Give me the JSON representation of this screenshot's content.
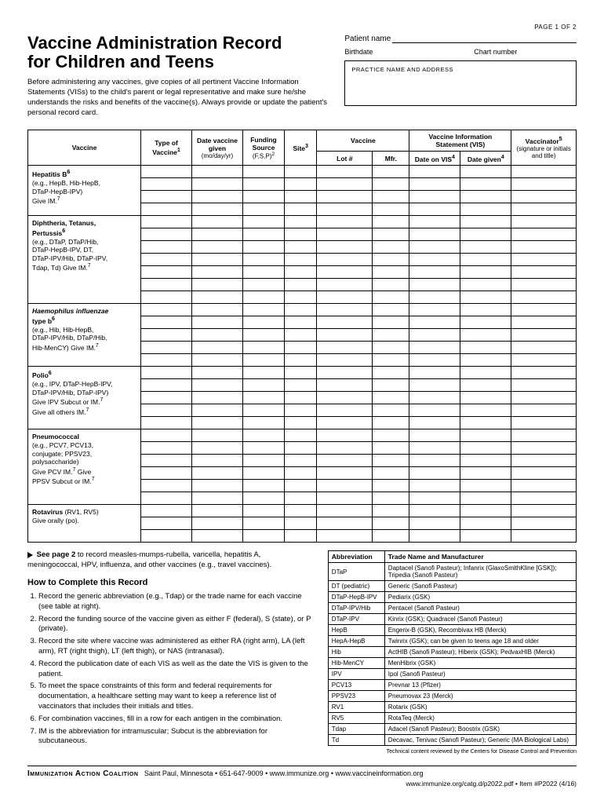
{
  "page_num": "PAGE 1 OF 2",
  "title_l1": "Vaccine Administration Record",
  "title_l2": "for Children and Teens",
  "intro": "Before administering any vaccines, give copies of all pertinent Vaccine Information Statements (VISs) to the child's parent or legal representative and make sure he/she understands the risks and benefits of the vaccine(s). Always provide or update the patient's personal record card.",
  "fields": {
    "patient_name": "Patient name",
    "birthdate": "Birthdate",
    "chart_number": "Chart number",
    "practice_box": "PRACTICE NAME AND ADDRESS"
  },
  "headers": {
    "vaccine": "Vaccine",
    "type": "Type of Vaccine",
    "type_sup": "1",
    "date": "Date vaccine given",
    "date_sub": "(mo/day/yr)",
    "funding": "Funding Source",
    "funding_sub": "(F,S,P)",
    "funding_sup": "2",
    "site": "Site",
    "site_sup": "3",
    "vacc_group": "Vaccine",
    "lot": "Lot #",
    "mfr": "Mfr.",
    "vis_group": "Vaccine Information Statement (VIS)",
    "vis_date": "Date on VIS",
    "vis_date_sup": "4",
    "vis_given": "Date given",
    "vis_given_sup": "4",
    "vaccinator": "Vaccinator",
    "vaccinator_sup": "5",
    "vaccinator_sub": "(signature or initials and title)"
  },
  "rows": [
    {
      "html": "<b>Hepatitis B<sup>6</sup></b><br>(e.g., HepB, Hib-HepB,<br>DTaP-HepB-IPV)<br>Give IM.<sup>7</sup>",
      "n": 4
    },
    {
      "html": "<b>Diphtheria, Tetanus,<br>Pertussis<sup>6</sup></b><br>(e.g., DTaP, DTaP/Hib,<br>DTaP-HepB-IPV, DT,<br>DTaP-IPV/Hib, DTaP-IPV,<br>Tdap, Td) Give IM.<sup>7</sup>",
      "n": 7
    },
    {
      "html": "<i>Haemophilus influenzae</i><br><b>type b<sup>6</sup></b><br>(e.g., Hib, Hib-HepB,<br>DTaP-IPV/Hib, DTaP/Hib,<br>Hib-MenCY) Give IM.<sup>7</sup>",
      "n": 5
    },
    {
      "html": "<b>Polio<sup>6</sup></b><br>(e.g., IPV, DTaP-HepB-IPV,<br>DTaP-IPV/Hib, DTaP-IPV)<br>Give IPV Subcut or IM.<sup>7</sup><br>Give all others IM.<sup>7</sup>",
      "n": 5
    },
    {
      "html": "<b>Pneumococcal</b><br>(e.g., PCV7, PCV13,<br>conjugate; PPSV23,<br>polysaccharide)<br>Give PCV IM.<sup>7</sup> Give<br>PPSV Subcut or IM.<sup>7</sup>",
      "n": 6
    },
    {
      "html": "<b>Rotavirus</b> (RV1, RV5)<br>Give orally (po).",
      "n": 3
    }
  ],
  "see_p2": "See page 2 to record measles-mumps-rubella, varicella, hepatitis A, meningococcal, HPV, influenza, and other vaccines (e.g., travel vaccines).",
  "howto_h": "How to Complete this Record",
  "howto": [
    "Record the generic abbreviation (e.g., Tdap) or the trade name for each vaccine (see table at right).",
    "Record the funding source of the vaccine given as either F (federal), S (state), or P (private).",
    "Record the site where vaccine was administered as either RA (right arm), LA (left arm), RT (right thigh), LT (left thigh), or NAS (intranasal).",
    "Record the publication date of each VIS as well as the date the VIS is given to the patient.",
    "To meet the space constraints of this form and federal requirements for documentation, a healthcare setting may want to keep a reference list of vaccinators that includes their initials and titles.",
    "For combination vaccines, fill in a row for each antigen in the combination.",
    "IM is the abbreviation for intramuscular; Subcut is the abbreviation for subcutaneous."
  ],
  "abbr_h1": "Abbreviation",
  "abbr_h2": "Trade Name and Manufacturer",
  "abbr": [
    [
      "DTaP",
      "Daptacel (Sanofi Pasteur); Infanrix (GlaxoSmithKline [GSK]); Tripedia (Sanofi Pasteur)"
    ],
    [
      "DT (pediatric)",
      "Generic (Sanofi Pasteur)"
    ],
    [
      "DTaP-HepB-IPV",
      "Pediarix (GSK)"
    ],
    [
      "DTaP-IPV/Hib",
      "Pentacel (Sanofi Pasteur)"
    ],
    [
      "DTaP-IPV",
      "Kinrix (GSK); Quadracel (Sanofi Pasteur)"
    ],
    [
      "HepB",
      "Engerix-B (GSK), Recombivax HB (Merck)"
    ],
    [
      "HepA-HepB",
      "Twinrix (GSK); can be given to teens age 18 and older"
    ],
    [
      "Hib",
      "ActHIB (Sanofi Pasteur); Hiberix (GSK); PedvaxHIB (Merck)"
    ],
    [
      "Hib-MenCY",
      "MenHibrix (GSK)"
    ],
    [
      "IPV",
      "Ipol (Sanofi Pasteur)"
    ],
    [
      "PCV13",
      "Prevnar 13 (Pfizer)"
    ],
    [
      "PPSV23",
      "Pneumovax 23 (Merck)"
    ],
    [
      "RV1",
      "Rotarix (GSK)"
    ],
    [
      "RV5",
      "RotaTeq (Merck)"
    ],
    [
      "Tdap",
      "Adacel (Sanofi Pasteur); Boostrix (GSK)"
    ],
    [
      "Td",
      "Decavac, Tenivac (Sanofi Pasteur); Generic (MA Biological Labs)"
    ]
  ],
  "foot_review": "Technical content reviewed by the Centers for Disease Control and Prevention",
  "foot_org": "Immunization Action Coalition",
  "foot_contact": "Saint Paul, Minnesota • 651-647-9009 • www.immunize.org • www.vaccineinformation.org",
  "foot_item": "www.immunize.org/catg.d/p2022.pdf • Item #P2022 (4/16)"
}
